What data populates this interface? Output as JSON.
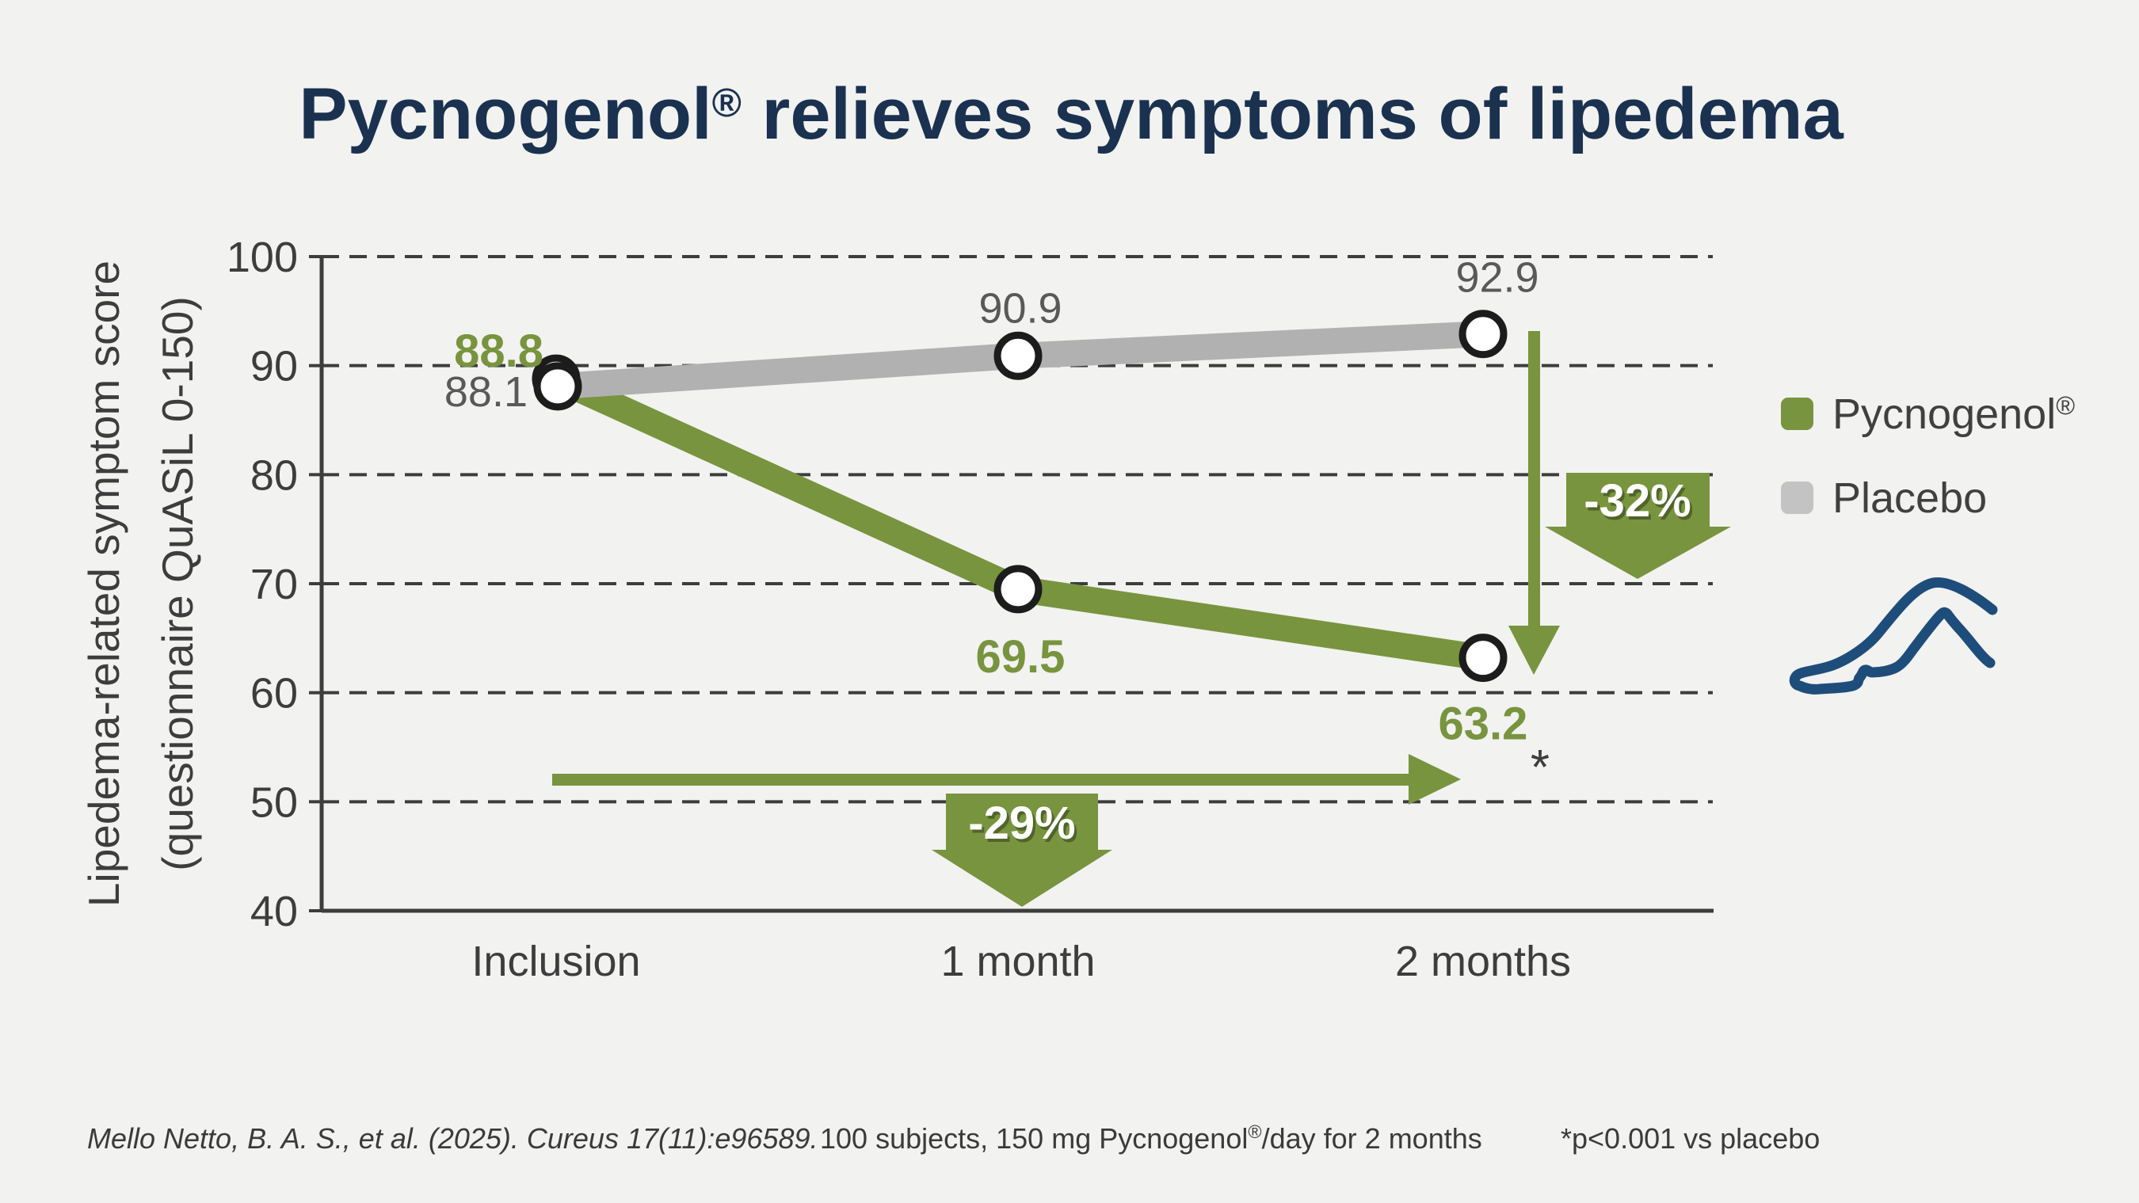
{
  "title": {
    "brand": "Pycnogenol",
    "reg": "®",
    "rest": " relieves symptoms of lipedema"
  },
  "axis": {
    "ylabel_line1": "Lipedema-related symptom score",
    "ylabel_line2": "(questionnaire QuASiL 0-150)"
  },
  "chart_data": {
    "type": "line",
    "categories": [
      "Inclusion",
      "1 month",
      "2 months"
    ],
    "series": [
      {
        "name": "Pycnogenol®",
        "color": "#78943e",
        "values": [
          88.8,
          69.5,
          63.2
        ],
        "labels": [
          "88.8",
          "69.5",
          "63.2"
        ]
      },
      {
        "name": "Placebo",
        "color": "#b1b1b1",
        "values": [
          88.1,
          90.9,
          92.9
        ],
        "labels": [
          "88.1",
          "90.9",
          "92.9"
        ]
      }
    ],
    "title": "Pycnogenol® relieves symptoms of lipedema",
    "xlabel": "",
    "ylabel": "Lipedema-related symptom score (questionnaire QuASiL 0-150)",
    "ylim": [
      40,
      100
    ],
    "yticks": [
      100,
      90,
      80,
      70,
      60,
      50,
      40
    ],
    "grid": "dashed horizontal",
    "legend_position": "right",
    "marker": "white circle, black outline",
    "annotations": {
      "pct_1month": "-29%",
      "pct_2months": "-32%",
      "significance": "*"
    }
  },
  "legend": {
    "items": [
      {
        "label": "Pycnogenol",
        "reg": "®",
        "color": "#78943e"
      },
      {
        "label": "Placebo",
        "color": "#c3c3c3"
      }
    ]
  },
  "footer": {
    "citation": "Mello Netto, B. A. S., et al. (2025). Cureus 17(11):e96589.",
    "study_prefix": "100 subjects, 150 mg Pycnogenol",
    "study_reg": "®",
    "study_suffix": "/day for 2 months",
    "note": "*p<0.001 vs placebo"
  },
  "colors": {
    "background": "#f2f2f1",
    "accent_green": "#78943e",
    "placebo_gray": "#b1b1b1",
    "legend_gray": "#c3c3c3",
    "title_navy": "#1b3150",
    "leg_icon_blue": "#1e4d7b",
    "axis_gray": "#3d3d3d",
    "gray_label": "#595959"
  }
}
